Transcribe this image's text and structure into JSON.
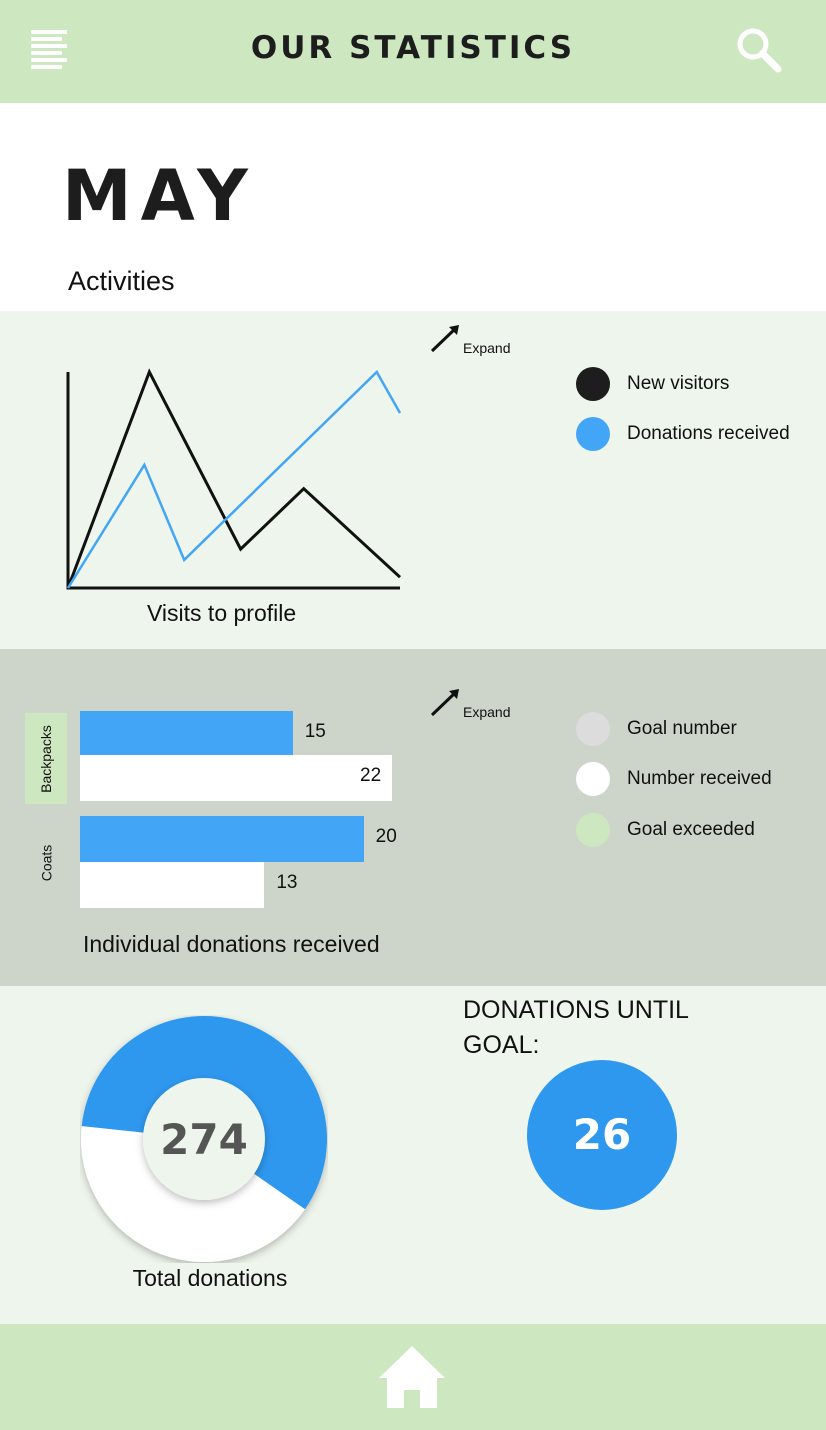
{
  "header": {
    "title": "OUR STATISTICS",
    "menu_icon": "hamburger-menu-icon",
    "search_icon": "search-icon"
  },
  "page": {
    "month": "MAY",
    "section_title": "Activities"
  },
  "colors": {
    "header_green": "#cde7c0",
    "light_green": "#eef5ec",
    "grey_green": "#cdd5cb",
    "accent_blue": "#42a5f5",
    "dark_blue": "#2e97ee",
    "dark": "#1d1d1d"
  },
  "line_chart": {
    "expand_label": "Expand",
    "caption": "Visits to profile",
    "legend": [
      {
        "label": "New visitors",
        "color": "#1d1d1d"
      },
      {
        "label": "Donations received",
        "color": "#42a5f5"
      }
    ]
  },
  "bar_chart": {
    "expand_label": "Expand",
    "caption": "Individual donations received",
    "legend": [
      {
        "label": "Goal number",
        "color": "#dcdcdc"
      },
      {
        "label": "Number received",
        "color": "#ffffff"
      },
      {
        "label": "Goal exceeded",
        "color": "#cde7c0"
      }
    ]
  },
  "donut": {
    "value": "274",
    "caption": "Total donations"
  },
  "goal": {
    "title": "DONATIONS UNTIL GOAL:",
    "value": "26"
  },
  "footer": {
    "home_icon": "home-icon"
  },
  "chart_data": [
    {
      "type": "line",
      "title": "",
      "xlabel": "Visits to profile",
      "ylabel": "",
      "x": [
        0,
        1,
        2,
        3,
        4,
        5,
        6,
        7,
        8
      ],
      "ylim": [
        0,
        100
      ],
      "series": [
        {
          "name": "New visitors",
          "color": "#111111",
          "x": [
            0,
            2.45,
            5.2,
            7.1,
            10
          ],
          "values": [
            0,
            100,
            18,
            46,
            5
          ]
        },
        {
          "name": "Donations received",
          "color": "#42a5f5",
          "x": [
            0,
            2.3,
            3.5,
            9.3,
            10
          ],
          "values": [
            0,
            57,
            13,
            100,
            81
          ]
        }
      ],
      "xlim": [
        0,
        10
      ],
      "legend": "right"
    },
    {
      "type": "bar",
      "orientation": "horizontal",
      "title": "",
      "xlabel": "Individual donations received",
      "categories": [
        "Backpacks",
        "Coats"
      ],
      "series": [
        {
          "name": "Goal number",
          "color": "#42a5f5",
          "values": [
            15,
            20
          ]
        },
        {
          "name": "Number received",
          "color": "#ffffff",
          "values": [
            22,
            13
          ]
        }
      ],
      "highlighted_category": "Backpacks",
      "xlim": [
        0,
        22
      ],
      "legend": "right"
    },
    {
      "type": "pie",
      "style": "donut",
      "center_label": "274",
      "caption": "Total donations",
      "slices": [
        {
          "name": "blue",
          "fraction": 0.58,
          "color": "#2e97ee"
        },
        {
          "name": "white",
          "fraction": 0.42,
          "color": "#ffffff"
        }
      ]
    }
  ]
}
